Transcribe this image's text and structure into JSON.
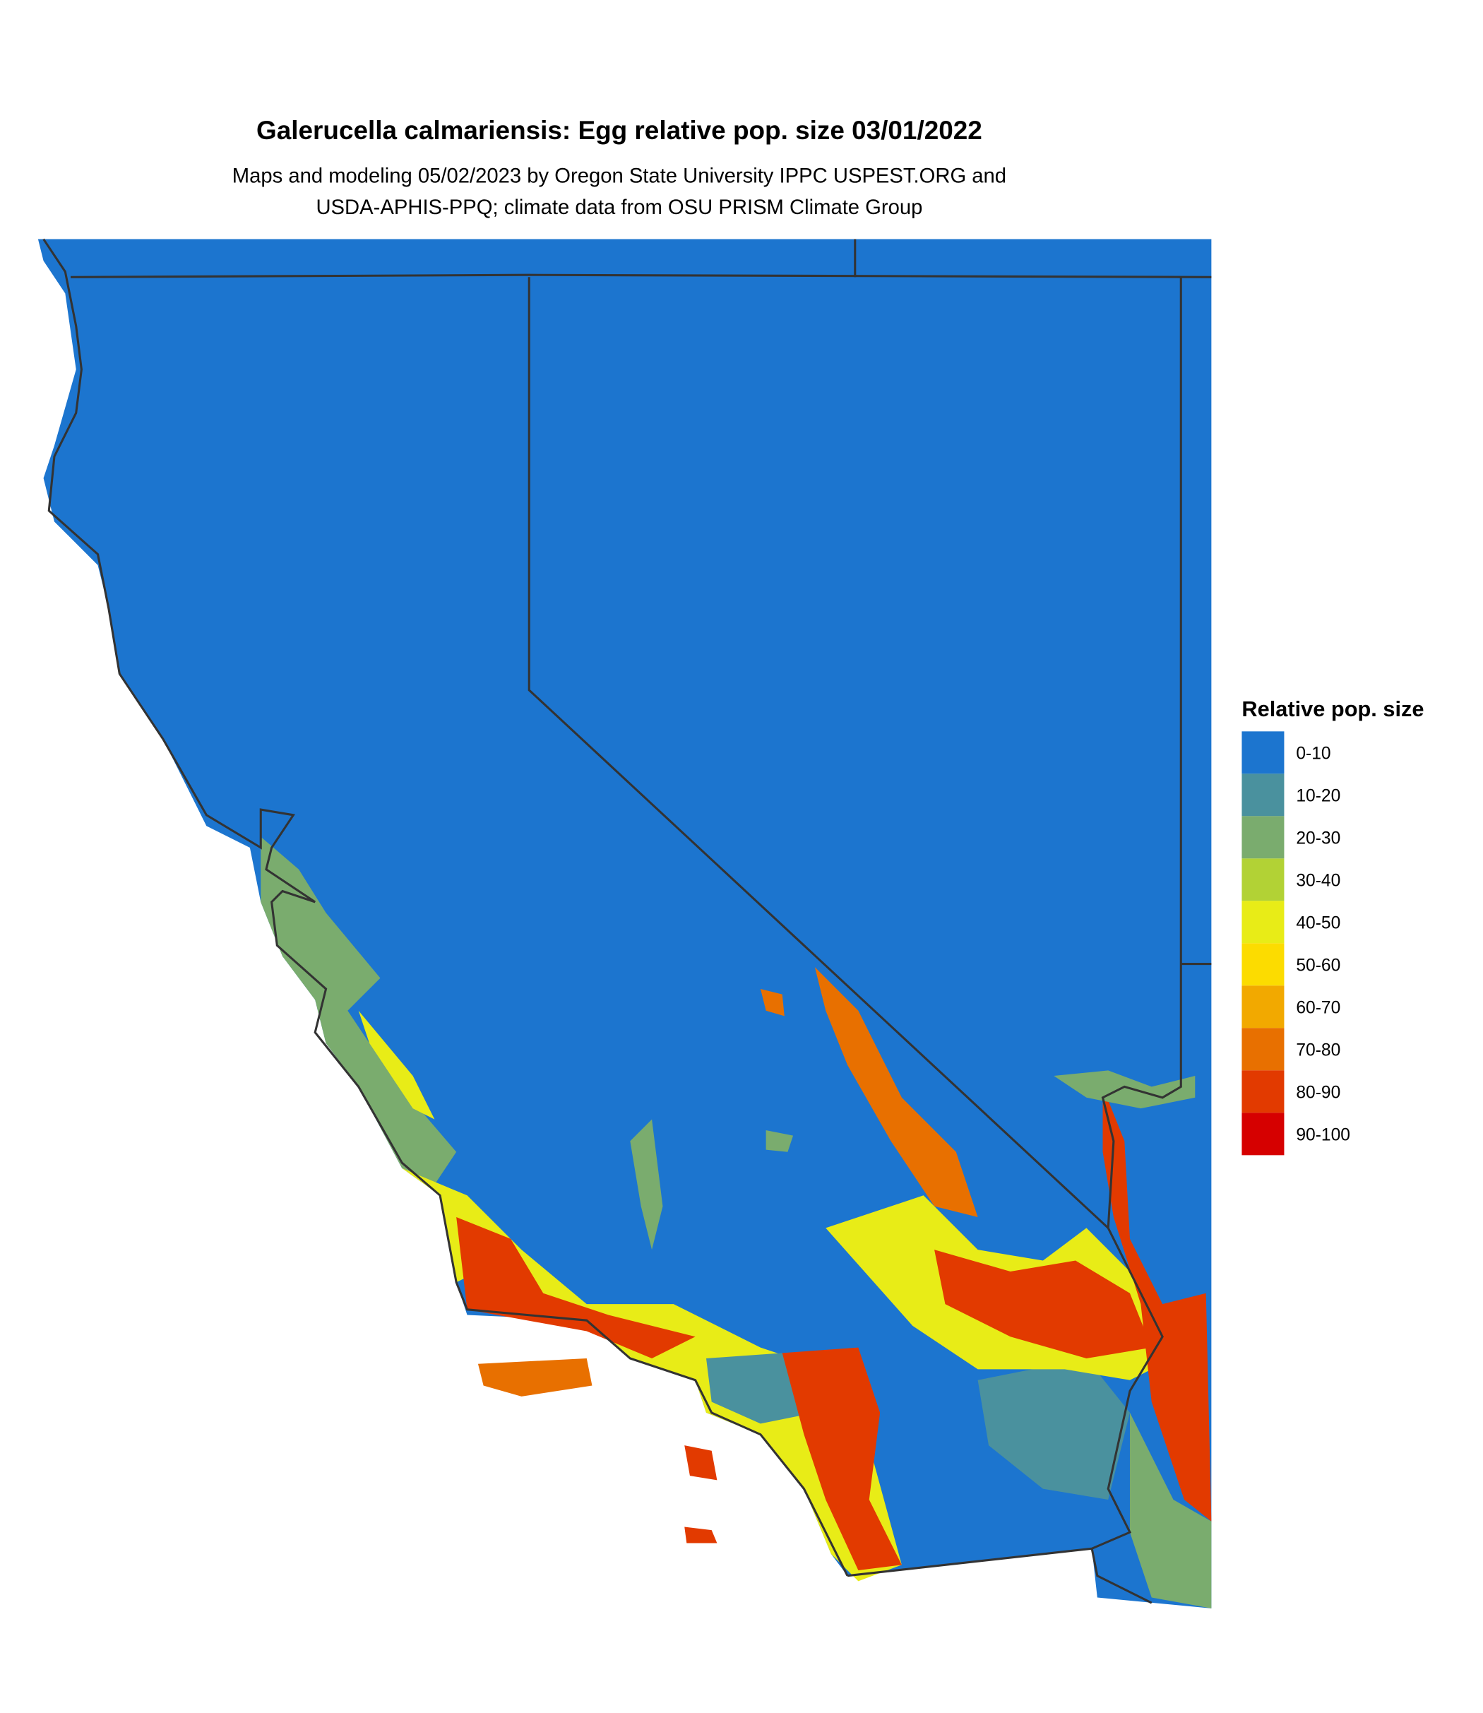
{
  "title": "Galerucella calmariensis: Egg relative pop. size 03/01/2022",
  "subtitle": [
    "Maps and modeling 05/02/2023 by Oregon State University IPPC USPEST.ORG and",
    "USDA-APHIS-PPQ; climate data from OSU PRISM Climate Group"
  ],
  "legend": {
    "title": "Relative pop. size",
    "items": [
      {
        "label": "0-10",
        "color": "#1c75cf"
      },
      {
        "label": "10-20",
        "color": "#4a919e"
      },
      {
        "label": "20-30",
        "color": "#7aac6e"
      },
      {
        "label": "30-40",
        "color": "#b2d235"
      },
      {
        "label": "40-50",
        "color": "#e8ec17"
      },
      {
        "label": "50-60",
        "color": "#fcdc00"
      },
      {
        "label": "60-70",
        "color": "#f2a900"
      },
      {
        "label": "70-80",
        "color": "#e87000"
      },
      {
        "label": "80-90",
        "color": "#e23a00"
      },
      {
        "label": "90-100",
        "color": "#d60000"
      }
    ]
  }
}
